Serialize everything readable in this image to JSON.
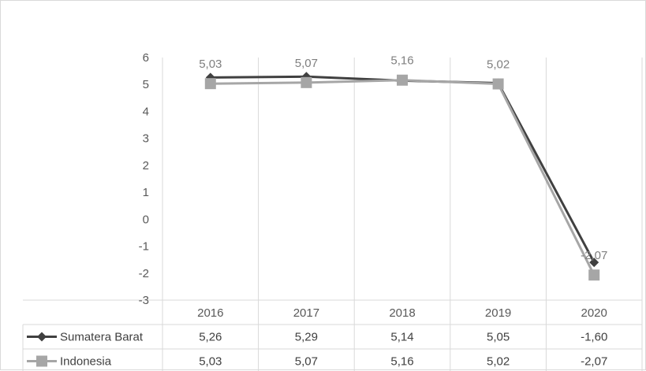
{
  "chart_data": {
    "type": "line",
    "title": "",
    "xlabel": "",
    "ylabel": "",
    "categories": [
      "2016",
      "2017",
      "2018",
      "2019",
      "2020"
    ],
    "ylim": [
      -3,
      6
    ],
    "yticks": [
      "6",
      "5",
      "4",
      "3",
      "2",
      "1",
      "0",
      "-1",
      "-2",
      "-3"
    ],
    "grid": "vertical",
    "legend": "data-table",
    "series": [
      {
        "name": "Sumatera Barat",
        "values": [
          5.26,
          5.29,
          5.14,
          5.05,
          -1.6
        ],
        "table_values": [
          "5,26",
          "5,29",
          "5,14",
          "5,05",
          "-1,60"
        ],
        "color": "#404040",
        "marker": "diamond"
      },
      {
        "name": "Indonesia",
        "values": [
          5.03,
          5.07,
          5.16,
          5.02,
          -2.07
        ],
        "table_values": [
          "5,03",
          "5,07",
          "5,16",
          "5,02",
          "-2,07"
        ],
        "data_labels": [
          "5,03",
          "5,07",
          "5,16",
          "5,02",
          "-2,07"
        ],
        "color": "#a6a6a6",
        "marker": "square"
      }
    ]
  }
}
